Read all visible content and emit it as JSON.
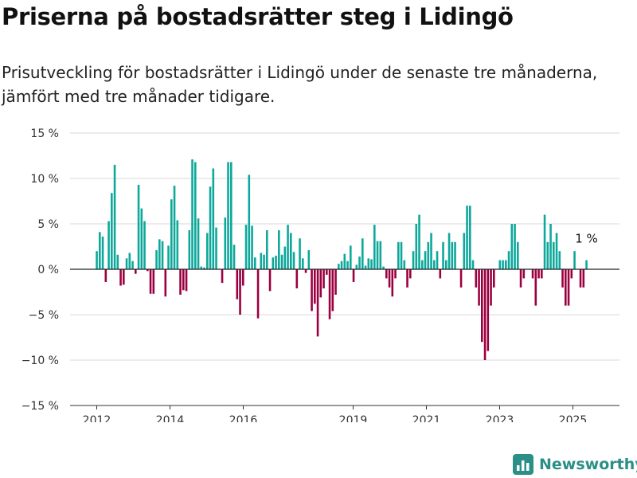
{
  "chart_data": {
    "type": "bar",
    "title": "Priserna på bostadsrätter steg i Lidingö",
    "subtitle": "Prisutveckling för bostadsrätter i Lidingö under de senaste tre månaderna, jämfört med tre månader tidigare.",
    "ylim": [
      -15,
      15
    ],
    "xlim": [
      2011.42,
      2025.92
    ],
    "y_ticks": [
      15,
      10,
      5,
      0,
      -5,
      -10,
      -15
    ],
    "y_tick_labels": [
      "15 %",
      "10 %",
      "5 %",
      "0 %",
      "−5 %",
      "−10 %",
      "−15 %"
    ],
    "x_ticks": [
      2012,
      2014,
      2016,
      2019,
      2021,
      2023,
      2025
    ],
    "x_tick_labels": [
      "2012",
      "2014",
      "2016",
      "2019",
      "2021",
      "2023",
      "2025"
    ],
    "grid": true,
    "positive_color": "#0da89b",
    "negative_color": "#9b0040",
    "values": [
      2.0,
      4.1,
      3.6,
      -1.4,
      5.3,
      8.4,
      11.5,
      1.6,
      -1.8,
      -1.7,
      1.2,
      1.8,
      0.9,
      -0.5,
      9.3,
      6.7,
      5.3,
      -0.2,
      -2.7,
      -2.7,
      2.1,
      3.3,
      3.1,
      -3.0,
      2.6,
      7.7,
      9.2,
      5.4,
      -2.8,
      -2.3,
      -2.4,
      4.3,
      12.1,
      11.8,
      5.6,
      0.3,
      0.2,
      4.0,
      9.1,
      11.1,
      4.6,
      0.0,
      -1.5,
      5.7,
      11.8,
      11.8,
      2.7,
      -3.3,
      -5.0,
      -1.8,
      4.9,
      10.4,
      4.8,
      1.3,
      -5.4,
      1.8,
      1.6,
      4.3,
      -2.4,
      1.3,
      1.5,
      4.3,
      1.6,
      2.5,
      4.9,
      4.0,
      1.9,
      -2.1,
      3.4,
      1.2,
      -0.4,
      2.1,
      -4.6,
      -3.8,
      -7.4,
      -3.1,
      -2.1,
      -0.6,
      -5.5,
      -4.6,
      -2.8,
      0.6,
      0.9,
      1.7,
      0.9,
      2.6,
      -1.4,
      0.5,
      1.4,
      3.4,
      0.4,
      1.2,
      1.1,
      4.9,
      3.1,
      3.1,
      0.3,
      -1.0,
      -2.0,
      -3.0,
      -1.0,
      3.0,
      3.0,
      1.0,
      -2.0,
      -1.0,
      2.0,
      5.0,
      6.0,
      1.0,
      2.0,
      3.0,
      4.0,
      1.0,
      2.0,
      -1.0,
      3.0,
      1.0,
      4.0,
      3.0,
      3.0,
      0.0,
      -2.0,
      4.0,
      7.0,
      7.0,
      1.0,
      -2.0,
      -4.0,
      -8.0,
      -10.0,
      -9.0,
      -4.0,
      -2.0,
      0.0,
      1.0,
      1.0,
      1.0,
      2.0,
      5.0,
      5.0,
      3.0,
      -2.0,
      -1.0,
      0.0,
      0.0,
      -1.0,
      -4.0,
      -1.0,
      -1.0,
      6.0,
      3.0,
      5.0,
      3.0,
      4.0,
      2.0,
      -2.0,
      -4.0,
      -4.0,
      -1.0,
      2.0,
      0.0,
      -2.0,
      -2.0,
      1.0
    ],
    "last_value_label": "1 %"
  },
  "brand": {
    "name": "Newsworthy",
    "logo_icon": "bar-chart-logo-icon",
    "color": "#2a8f86"
  }
}
